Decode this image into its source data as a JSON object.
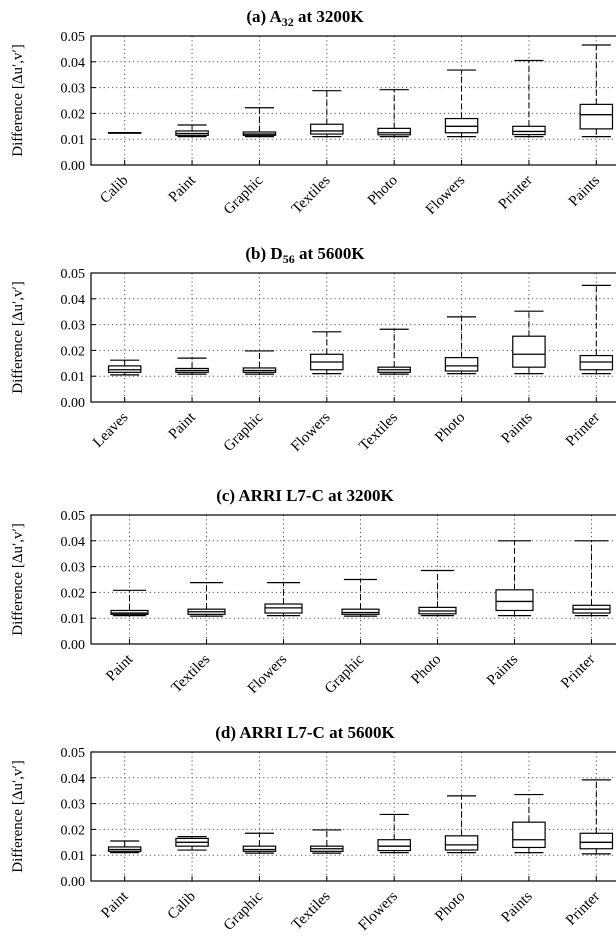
{
  "chart_data": [
    {
      "type": "box",
      "title": "(a) A",
      "title_sub": "32",
      "title_suffix": " at 3200K",
      "ylabel": "Difference [Δu′,v′]",
      "ylim": [
        0,
        0.05
      ],
      "yticks": [
        "0.00",
        "0.01",
        "0.02",
        "0.03",
        "0.04",
        "0.05"
      ],
      "grid": true,
      "categories": [
        "Calib",
        "Paint",
        "Graphic",
        "Textiles",
        "Photo",
        "Flowers",
        "Printer",
        "Paints"
      ],
      "boxes": [
        {
          "min": 0.0125,
          "q1": 0.0125,
          "median": 0.0125,
          "q3": 0.0125,
          "max": 0.0125
        },
        {
          "min": 0.011,
          "q1": 0.0115,
          "median": 0.0122,
          "q3": 0.0132,
          "max": 0.0155
        },
        {
          "min": 0.011,
          "q1": 0.0115,
          "median": 0.012,
          "q3": 0.0128,
          "max": 0.0222
        },
        {
          "min": 0.011,
          "q1": 0.012,
          "median": 0.0132,
          "q3": 0.0158,
          "max": 0.0288
        },
        {
          "min": 0.011,
          "q1": 0.0117,
          "median": 0.0125,
          "q3": 0.0142,
          "max": 0.0292
        },
        {
          "min": 0.011,
          "q1": 0.0125,
          "median": 0.015,
          "q3": 0.018,
          "max": 0.0368
        },
        {
          "min": 0.011,
          "q1": 0.0118,
          "median": 0.013,
          "q3": 0.015,
          "max": 0.0405
        },
        {
          "min": 0.011,
          "q1": 0.014,
          "median": 0.0195,
          "q3": 0.0235,
          "max": 0.0465
        }
      ]
    },
    {
      "type": "box",
      "title": "(b) D",
      "title_sub": "56",
      "title_suffix": " at 5600K",
      "ylabel": "Difference [Δu′,v′]",
      "ylim": [
        0,
        0.05
      ],
      "yticks": [
        "0.00",
        "0.01",
        "0.02",
        "0.03",
        "0.04",
        "0.05"
      ],
      "grid": true,
      "categories": [
        "Leaves",
        "Paint",
        "Graphic",
        "Flowers",
        "Textiles",
        "Photo",
        "Paints",
        "Printer"
      ],
      "boxes": [
        {
          "min": 0.0105,
          "q1": 0.0115,
          "median": 0.0125,
          "q3": 0.014,
          "max": 0.0162
        },
        {
          "min": 0.0108,
          "q1": 0.0115,
          "median": 0.0122,
          "q3": 0.013,
          "max": 0.017
        },
        {
          "min": 0.0108,
          "q1": 0.0115,
          "median": 0.0122,
          "q3": 0.0132,
          "max": 0.0198
        },
        {
          "min": 0.011,
          "q1": 0.0125,
          "median": 0.0155,
          "q3": 0.0185,
          "max": 0.0272
        },
        {
          "min": 0.0108,
          "q1": 0.0115,
          "median": 0.0125,
          "q3": 0.0135,
          "max": 0.0282
        },
        {
          "min": 0.011,
          "q1": 0.012,
          "median": 0.014,
          "q3": 0.0172,
          "max": 0.033
        },
        {
          "min": 0.011,
          "q1": 0.0135,
          "median": 0.0185,
          "q3": 0.0255,
          "max": 0.0352
        },
        {
          "min": 0.011,
          "q1": 0.0125,
          "median": 0.0155,
          "q3": 0.018,
          "max": 0.0452
        }
      ]
    },
    {
      "type": "box",
      "title": "(c) ARRI L7-C at 3200K",
      "title_sub": "",
      "title_suffix": "",
      "ylabel": "Difference [Δu′,v′]",
      "ylim": [
        0,
        0.05
      ],
      "yticks": [
        "0.00",
        "0.01",
        "0.02",
        "0.03",
        "0.04",
        "0.05"
      ],
      "grid": true,
      "categories": [
        "Paint",
        "Textiles",
        "Flowers",
        "Graphic",
        "Photo",
        "Paints",
        "Printer"
      ],
      "boxes": [
        {
          "min": 0.011,
          "q1": 0.0115,
          "median": 0.012,
          "q3": 0.013,
          "max": 0.0208
        },
        {
          "min": 0.0108,
          "q1": 0.0115,
          "median": 0.0125,
          "q3": 0.0135,
          "max": 0.0238
        },
        {
          "min": 0.011,
          "q1": 0.012,
          "median": 0.014,
          "q3": 0.0155,
          "max": 0.0238
        },
        {
          "min": 0.0108,
          "q1": 0.0115,
          "median": 0.0122,
          "q3": 0.0135,
          "max": 0.025
        },
        {
          "min": 0.011,
          "q1": 0.0117,
          "median": 0.0128,
          "q3": 0.0142,
          "max": 0.0285
        },
        {
          "min": 0.011,
          "q1": 0.013,
          "median": 0.0165,
          "q3": 0.021,
          "max": 0.04
        },
        {
          "min": 0.011,
          "q1": 0.012,
          "median": 0.0135,
          "q3": 0.015,
          "max": 0.04
        }
      ]
    },
    {
      "type": "box",
      "title": "(d) ARRI L7-C at 5600K",
      "title_sub": "",
      "title_suffix": "",
      "ylabel": "Difference [Δu′,v′]",
      "ylim": [
        0,
        0.05
      ],
      "yticks": [
        "0.00",
        "0.01",
        "0.02",
        "0.03",
        "0.04",
        "0.05"
      ],
      "grid": true,
      "categories": [
        "Paint",
        "Calib",
        "Graphic",
        "Textiles",
        "Flowers",
        "Photo",
        "Paints",
        "Printer"
      ],
      "boxes": [
        {
          "min": 0.011,
          "q1": 0.0115,
          "median": 0.0122,
          "q3": 0.0132,
          "max": 0.0155
        },
        {
          "min": 0.012,
          "q1": 0.0135,
          "median": 0.015,
          "q3": 0.0165,
          "max": 0.0172
        },
        {
          "min": 0.0108,
          "q1": 0.0115,
          "median": 0.0122,
          "q3": 0.0135,
          "max": 0.0185
        },
        {
          "min": 0.0108,
          "q1": 0.0115,
          "median": 0.0125,
          "q3": 0.0135,
          "max": 0.0198
        },
        {
          "min": 0.011,
          "q1": 0.0118,
          "median": 0.0135,
          "q3": 0.016,
          "max": 0.0258
        },
        {
          "min": 0.011,
          "q1": 0.012,
          "median": 0.014,
          "q3": 0.0175,
          "max": 0.033
        },
        {
          "min": 0.011,
          "q1": 0.013,
          "median": 0.016,
          "q3": 0.0228,
          "max": 0.0335
        },
        {
          "min": 0.0105,
          "q1": 0.0125,
          "median": 0.015,
          "q3": 0.0185,
          "max": 0.0392
        }
      ]
    }
  ]
}
